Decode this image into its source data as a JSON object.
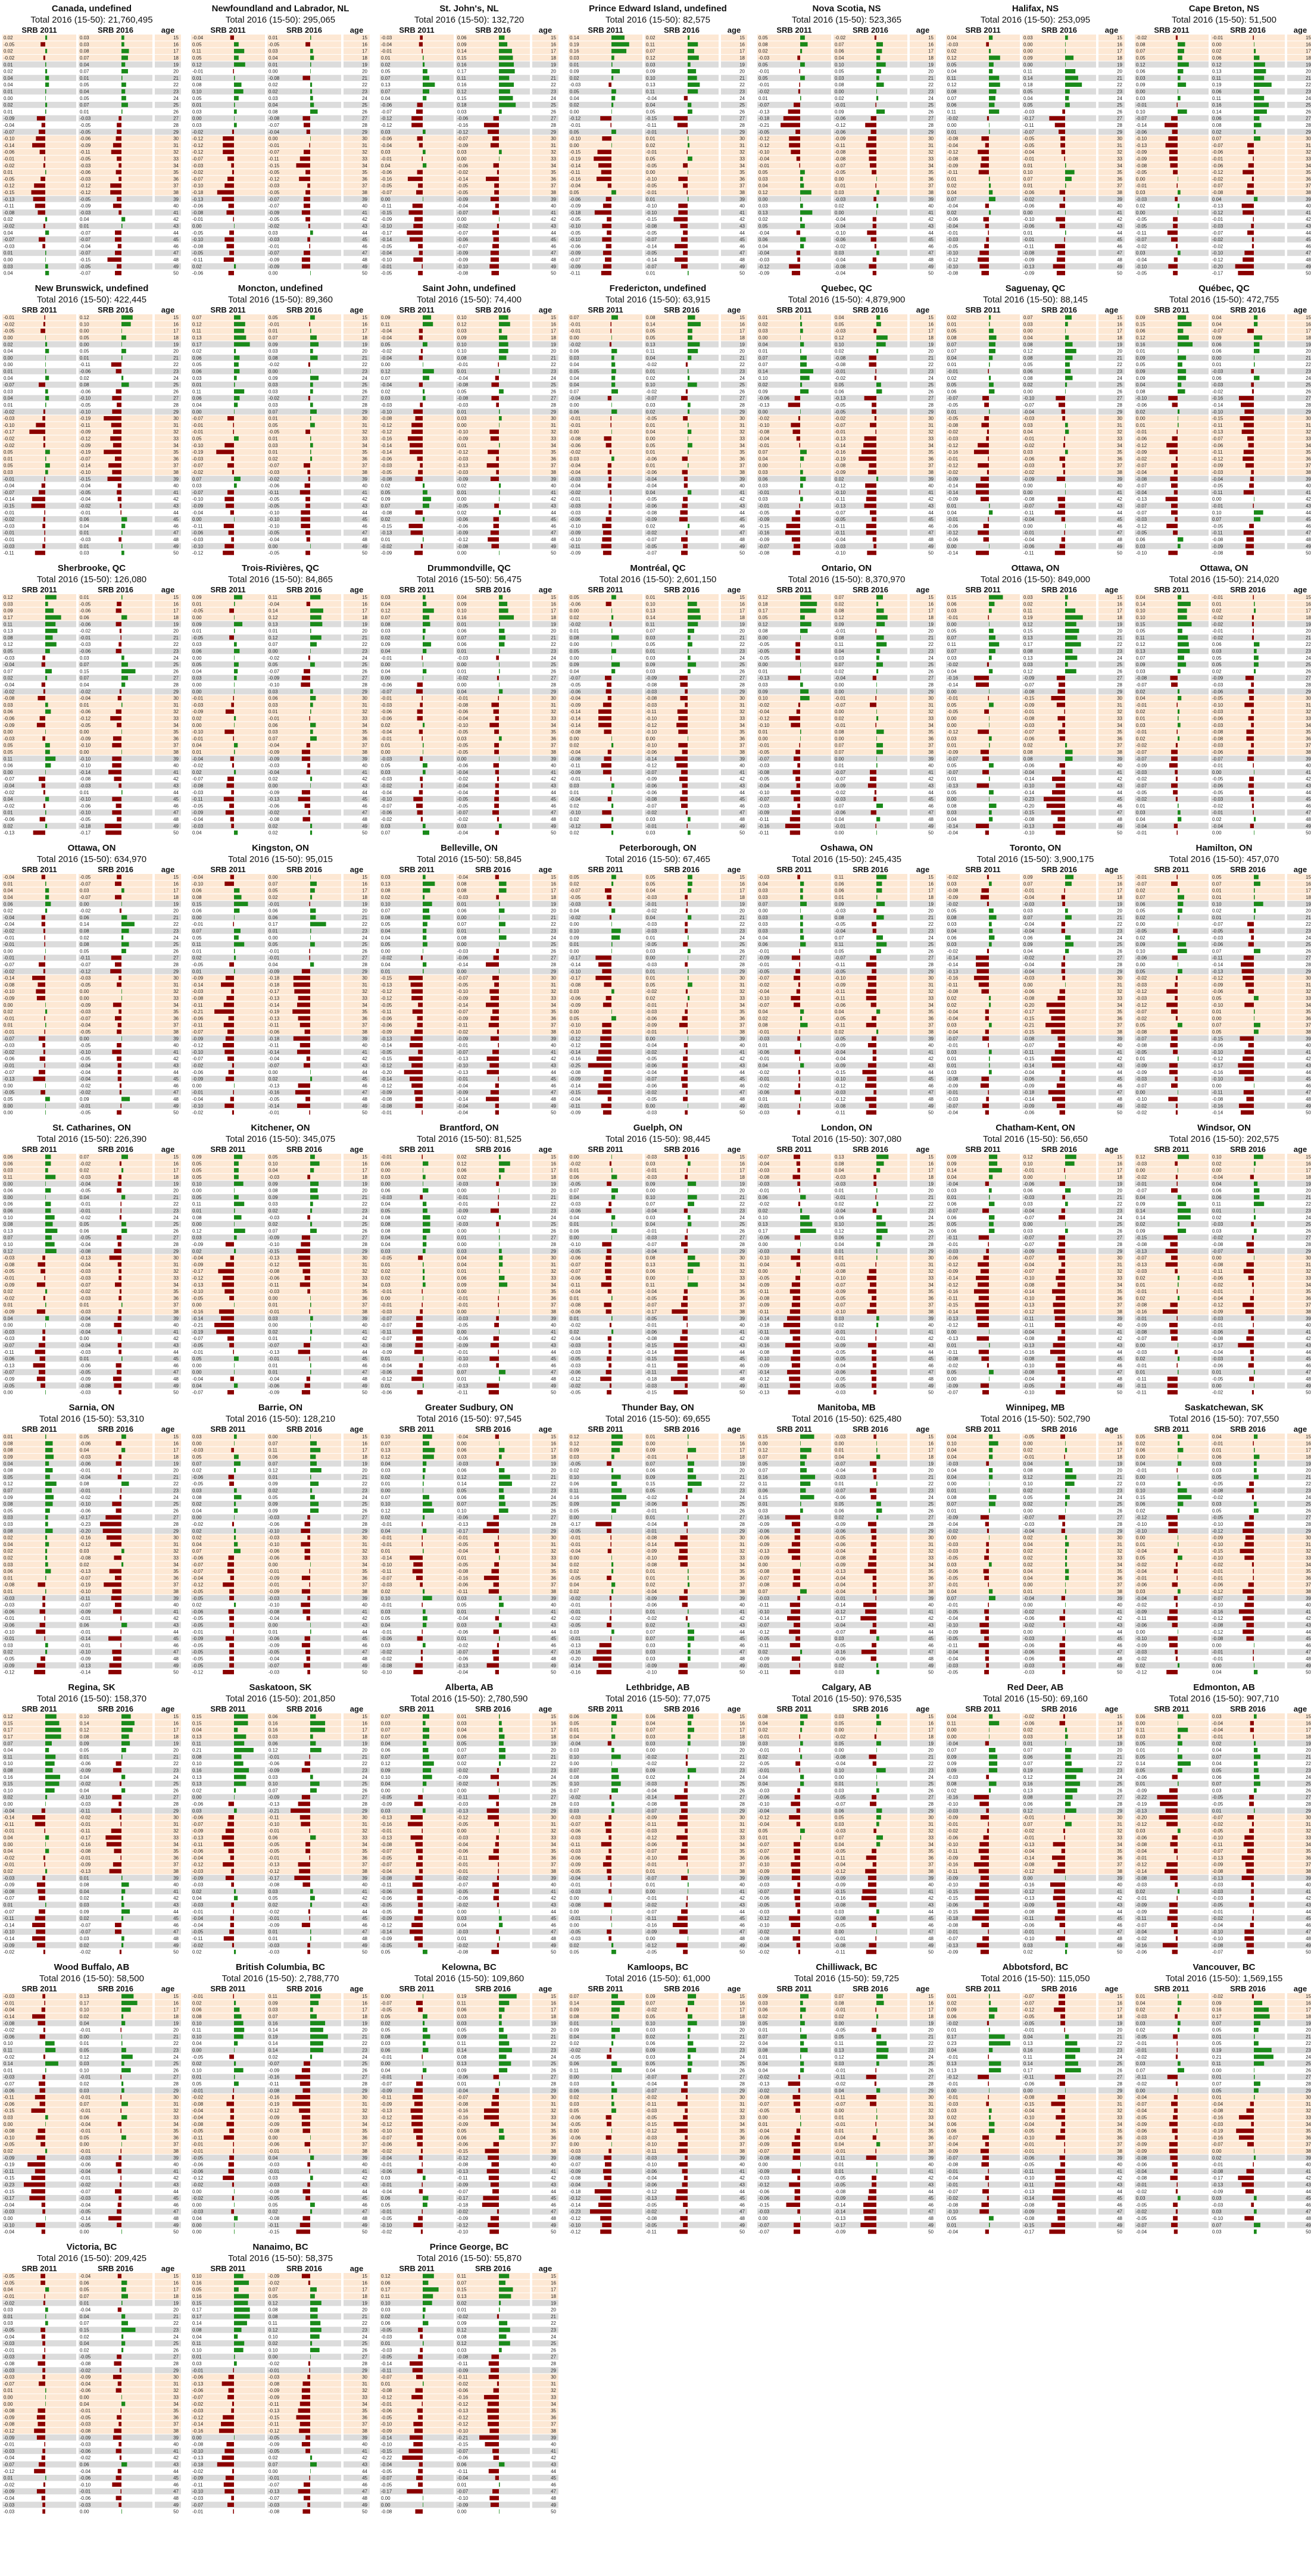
{
  "colors": {
    "positive": "#1a8a1a",
    "negative": "#8b0000",
    "row_stripe": "#dcdcdc",
    "band": "#fde8d4",
    "background": "#ffffff"
  },
  "labels": {
    "col_left": "SRB 2011",
    "col_mid": "SRB 2016",
    "col_right": "age",
    "subtitle_prefix": "Total 2016 (15-50): "
  },
  "chart_data": {
    "type": "bar",
    "layout": "small-multiples",
    "ages": [
      15,
      16,
      17,
      18,
      19,
      20,
      21,
      22,
      23,
      24,
      25,
      26,
      27,
      28,
      29,
      30,
      31,
      32,
      33,
      34,
      35,
      36,
      37,
      38,
      39,
      40,
      41,
      42,
      43,
      44,
      45,
      46,
      47,
      48,
      49,
      50
    ],
    "highlight_age_bands": [
      [
        15,
        18
      ],
      [
        30,
        38
      ]
    ],
    "bar_scale_max": 0.3,
    "panels": [
      {
        "title": "Canada, undefined",
        "total": "21,760,495"
      },
      {
        "title": "Newfoundland and Labrador, NL",
        "total": "295,065"
      },
      {
        "title": "St. John's, NL",
        "total": "132,720"
      },
      {
        "title": "Prince Edward Island, undefined",
        "total": "82,575"
      },
      {
        "title": "Nova Scotia, NS",
        "total": "523,365"
      },
      {
        "title": "Halifax, NS",
        "total": "253,095"
      },
      {
        "title": "Cape Breton, NS",
        "total": "51,500"
      },
      {
        "title": "New Brunswick, undefined",
        "total": "422,445"
      },
      {
        "title": "Moncton, undefined",
        "total": "89,360"
      },
      {
        "title": "Saint John, undefined",
        "total": "74,400"
      },
      {
        "title": "Fredericton, undefined",
        "total": "63,915"
      },
      {
        "title": "Quebec, QC",
        "total": "4,879,900"
      },
      {
        "title": "Saguenay, QC",
        "total": "88,145"
      },
      {
        "title": "Québec, QC",
        "total": "472,755"
      },
      {
        "title": "Sherbrooke, QC",
        "total": "126,080"
      },
      {
        "title": "Trois-Rivières, QC",
        "total": "84,865"
      },
      {
        "title": "Drummondville, QC",
        "total": "56,475"
      },
      {
        "title": "Montréal, QC",
        "total": "2,601,150"
      },
      {
        "title": "Ontario, ON",
        "total": "8,370,970"
      },
      {
        "title": "Ottawa, ON",
        "total": "849,000"
      },
      {
        "title": "Ottawa, ON",
        "total": "214,020"
      },
      {
        "title": "Ottawa, ON",
        "total": "634,970"
      },
      {
        "title": "Kingston, ON",
        "total": "95,015"
      },
      {
        "title": "Belleville, ON",
        "total": "58,845"
      },
      {
        "title": "Peterborough, ON",
        "total": "67,465"
      },
      {
        "title": "Oshawa, ON",
        "total": "245,435"
      },
      {
        "title": "Toronto, ON",
        "total": "3,900,175"
      },
      {
        "title": "Hamilton, ON",
        "total": "457,070"
      },
      {
        "title": "St. Catharines, ON",
        "total": "226,390"
      },
      {
        "title": "Kitchener, ON",
        "total": "345,075"
      },
      {
        "title": "Brantford, ON",
        "total": "81,525"
      },
      {
        "title": "Guelph, ON",
        "total": "98,445"
      },
      {
        "title": "London, ON",
        "total": "307,080"
      },
      {
        "title": "Chatham-Kent, ON",
        "total": "56,650"
      },
      {
        "title": "Windsor, ON",
        "total": "202,575"
      },
      {
        "title": "Sarnia, ON",
        "total": "53,310"
      },
      {
        "title": "Barrie, ON",
        "total": "128,210"
      },
      {
        "title": "Greater Sudbury, ON",
        "total": "97,545"
      },
      {
        "title": "Thunder Bay, ON",
        "total": "69,655"
      },
      {
        "title": "Manitoba, MB",
        "total": "625,480"
      },
      {
        "title": "Winnipeg, MB",
        "total": "502,790"
      },
      {
        "title": "Saskatchewan, SK",
        "total": "707,550"
      },
      {
        "title": "Regina, SK",
        "total": "158,370"
      },
      {
        "title": "Saskatoon, SK",
        "total": "201,850"
      },
      {
        "title": "Alberta, AB",
        "total": "2,780,590"
      },
      {
        "title": "Lethbridge, AB",
        "total": "77,075"
      },
      {
        "title": "Calgary, AB",
        "total": "976,535"
      },
      {
        "title": "Red Deer, AB",
        "total": "69,160"
      },
      {
        "title": "Edmonton, AB",
        "total": "907,710"
      },
      {
        "title": "Wood Buffalo, AB",
        "total": "58,500"
      },
      {
        "title": "British Columbia, BC",
        "total": "2,788,770"
      },
      {
        "title": "Kelowna, BC",
        "total": "109,860"
      },
      {
        "title": "Kamloops, BC",
        "total": "61,000"
      },
      {
        "title": "Chilliwack, BC",
        "total": "59,725"
      },
      {
        "title": "Abbotsford, BC",
        "total": "115,050"
      },
      {
        "title": "Vancouver, BC",
        "total": "1,569,155"
      },
      {
        "title": "Victoria, BC",
        "total": "209,425"
      },
      {
        "title": "Nanaimo, BC",
        "total": "58,375"
      },
      {
        "title": "Prince George, BC",
        "total": "55,870"
      }
    ]
  }
}
